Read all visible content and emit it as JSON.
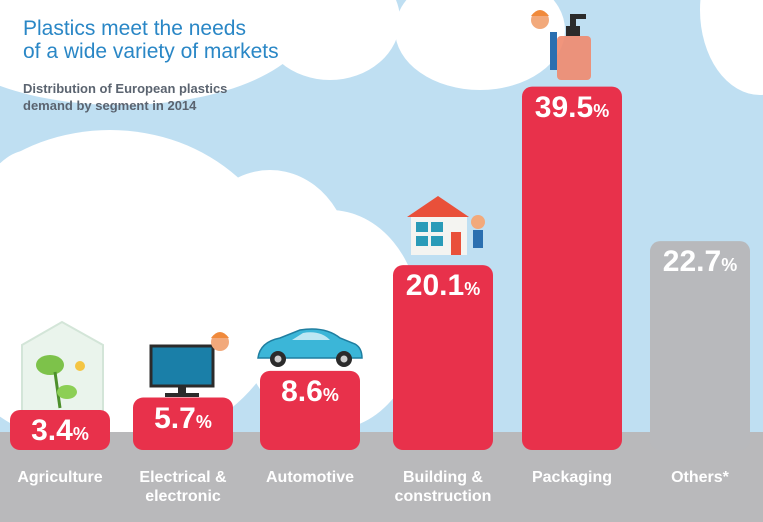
{
  "header": {
    "title_line1": "Plastics meet the needs",
    "title_line2": "of a wide variety of markets",
    "subtitle_line1": "Distribution of European plastics",
    "subtitle_line2": "demand by segment in 2014"
  },
  "colors": {
    "bar_main": "#e8314b",
    "bar_other": "#b8b9bc",
    "title": "#2a87c6",
    "sky": "#bfdff2",
    "ground": "#b9b9bb"
  },
  "chart_data": {
    "type": "bar",
    "title": "Distribution of European plastics demand by segment in 2014",
    "unit": "%",
    "categories": [
      "Agriculture",
      "Electrical & electronic",
      "Automotive",
      "Building & construction",
      "Packaging",
      "Others*"
    ],
    "category_lines": [
      [
        "Agriculture"
      ],
      [
        "Electrical &",
        "electronic"
      ],
      [
        "Automotive"
      ],
      [
        "Building &",
        "construction"
      ],
      [
        "Packaging"
      ],
      [
        "Others*"
      ]
    ],
    "values": [
      3.4,
      5.7,
      8.6,
      20.1,
      39.5,
      22.7
    ],
    "labels": [
      "3.4",
      "5.7",
      "8.6",
      "20.1",
      "39.5",
      "22.7"
    ],
    "pct_sign": "%",
    "illustrations": [
      "greenhouse-icon",
      "monitor-icon",
      "car-icon",
      "house-icon",
      "bottle-icon",
      ""
    ]
  }
}
